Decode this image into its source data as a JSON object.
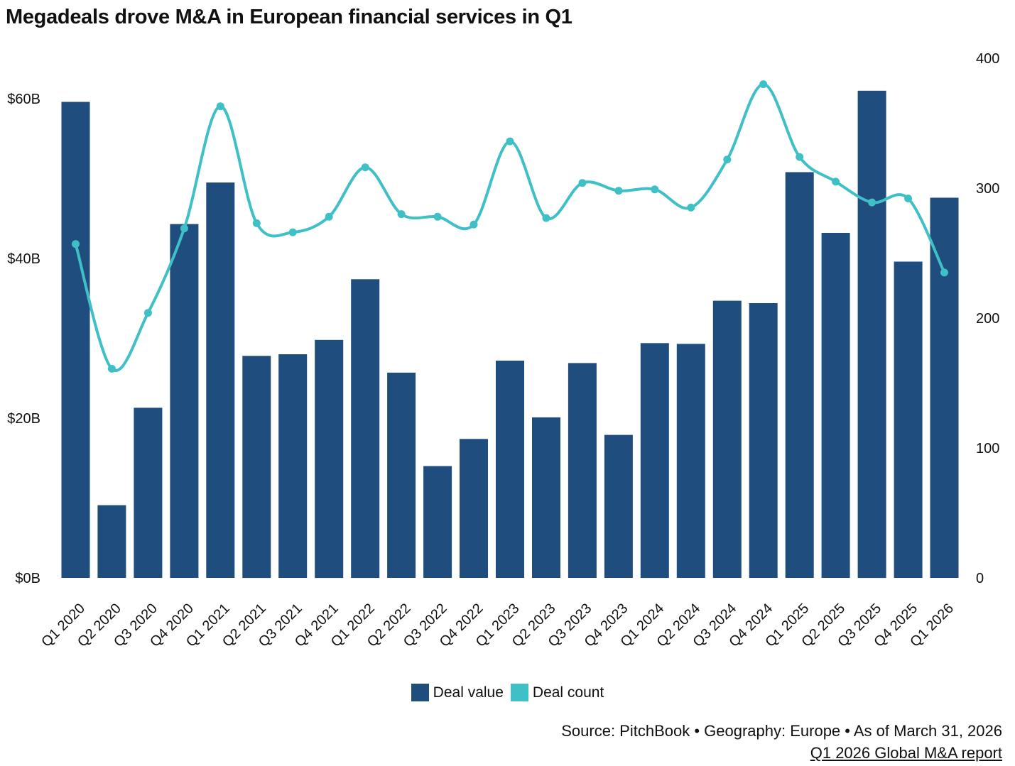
{
  "title": "Megadeals drove M&A in European financial services in Q1",
  "colors": {
    "bar": "#1f4e7e",
    "line": "#3fbfc6"
  },
  "legend": {
    "value_label": "Deal value",
    "count_label": "Deal count"
  },
  "footer": {
    "source": "Source: PitchBook • Geography: Europe • As of March 31, 2026",
    "report": "Q1 2026 Global M&A report"
  },
  "chart_data": {
    "type": "bar",
    "categories": [
      "Q1 2020",
      "Q2 2020",
      "Q3 2020",
      "Q4 2020",
      "Q1 2021",
      "Q2 2021",
      "Q3 2021",
      "Q4 2021",
      "Q1 2022",
      "Q2 2022",
      "Q3 2022",
      "Q4 2022",
      "Q1 2023",
      "Q2 2023",
      "Q3 2023",
      "Q4 2023",
      "Q1 2024",
      "Q2 2024",
      "Q3 2024",
      "Q4 2024",
      "Q1 2025",
      "Q2 2025",
      "Q3 2025",
      "Q4 2025",
      "Q1 2026"
    ],
    "series": [
      {
        "name": "Deal value",
        "type": "bar",
        "axis": "left",
        "values": [
          59.6,
          9.1,
          21.3,
          44.3,
          49.5,
          27.8,
          28.0,
          29.8,
          37.4,
          25.7,
          14.0,
          17.4,
          27.2,
          20.1,
          26.9,
          17.9,
          29.4,
          29.3,
          34.7,
          34.4,
          50.8,
          43.2,
          61.0,
          39.6,
          47.6
        ]
      },
      {
        "name": "Deal count",
        "type": "line",
        "axis": "right",
        "values": [
          257,
          161,
          204,
          269,
          363,
          273,
          266,
          278,
          316,
          280,
          278,
          272,
          336,
          277,
          304,
          298,
          299,
          285,
          322,
          380,
          324,
          305,
          289,
          292,
          235
        ]
      }
    ],
    "y_left": {
      "ticks": [
        "$0B",
        "$20B",
        "$40B",
        "$60B"
      ],
      "tick_values": [
        0,
        20,
        40,
        60
      ],
      "unit_per_tick": 20
    },
    "y_right": {
      "ticks": [
        "0",
        "100",
        "200",
        "300",
        "400"
      ],
      "tick_values": [
        0,
        100,
        200,
        300,
        400
      ],
      "ylim": [
        0,
        400
      ]
    },
    "grid": false,
    "legend_position": "bottom"
  }
}
